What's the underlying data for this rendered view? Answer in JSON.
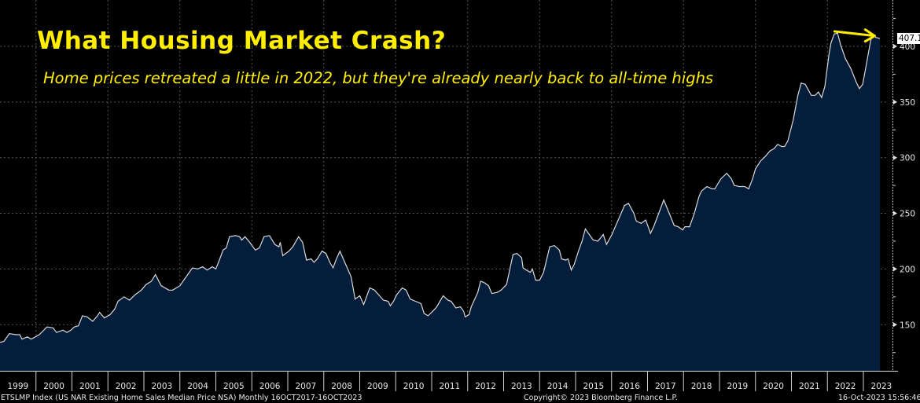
{
  "header": {
    "title": "What Housing Market Crash?",
    "subtitle": "Home prices retreated a little in 2022, but they're already nearly back to all-time highs"
  },
  "footer": {
    "series_desc": "ETSLMP Index (US NAR Existing Home Sales Median Price NSA)  Monthly 16OCT2017-16OCT2023",
    "copyright": "Copyright© 2023 Bloomberg Finance L.P.",
    "timestamp": "16-Oct-2023 15:56:46"
  },
  "colors": {
    "background": "#000000",
    "area_fill": "#041d3a",
    "line": "#d8d8d8",
    "title": "#ffee00",
    "arrow": "#ffee00",
    "grid": "#555555"
  },
  "chart_data": {
    "type": "area",
    "title": "What Housing Market Crash?",
    "subtitle": "Home prices retreated a little in 2022, but they're already nearly back to all-time highs",
    "xlabel": "",
    "ylabel": "",
    "y_axis_side": "right",
    "ylim": [
      108,
      430
    ],
    "xlim": [
      1999.0,
      2023.6
    ],
    "y_ticks": [
      150,
      200,
      250,
      300,
      350,
      400
    ],
    "x_tick_labels": [
      "1999",
      "2000",
      "2001",
      "2002",
      "2003",
      "2004",
      "2005",
      "2006",
      "2007",
      "2008",
      "2009",
      "2010",
      "2011",
      "2012",
      "2013",
      "2014",
      "2015",
      "2016",
      "2017",
      "2018",
      "2019",
      "2020",
      "2021",
      "2022",
      "2023"
    ],
    "grid": true,
    "last_value_label": "407.1",
    "annotation": {
      "type": "arrow",
      "from": [
        2022.2,
        412
      ],
      "to": [
        2023.4,
        408
      ],
      "meaning": "from prior peak to current level"
    },
    "series": [
      {
        "name": "US NAR Existing Home Sales Median Price NSA",
        "points": [
          [
            1999.0,
            134
          ],
          [
            1999.11,
            135
          ],
          [
            1999.26,
            142
          ],
          [
            1999.44,
            141
          ],
          [
            1999.55,
            141
          ],
          [
            1999.61,
            137
          ],
          [
            1999.76,
            139
          ],
          [
            1999.87,
            137
          ],
          [
            2000.09,
            141
          ],
          [
            2000.31,
            148
          ],
          [
            2000.48,
            147
          ],
          [
            2000.57,
            143
          ],
          [
            2000.75,
            145
          ],
          [
            2000.86,
            143
          ],
          [
            2000.97,
            145
          ],
          [
            2001.07,
            148
          ],
          [
            2001.18,
            149
          ],
          [
            2001.29,
            158
          ],
          [
            2001.42,
            157
          ],
          [
            2001.58,
            153
          ],
          [
            2001.71,
            158
          ],
          [
            2001.77,
            161
          ],
          [
            2001.9,
            156
          ],
          [
            2002.06,
            159
          ],
          [
            2002.19,
            164
          ],
          [
            2002.28,
            171
          ],
          [
            2002.45,
            175
          ],
          [
            2002.6,
            172
          ],
          [
            2002.76,
            177
          ],
          [
            2002.93,
            181
          ],
          [
            2003.06,
            186
          ],
          [
            2003.21,
            189
          ],
          [
            2003.32,
            195
          ],
          [
            2003.48,
            185
          ],
          [
            2003.69,
            181
          ],
          [
            2003.8,
            181
          ],
          [
            2004.0,
            185
          ],
          [
            2004.24,
            196
          ],
          [
            2004.35,
            201
          ],
          [
            2004.5,
            200
          ],
          [
            2004.63,
            202
          ],
          [
            2004.76,
            199
          ],
          [
            2004.9,
            202
          ],
          [
            2005.0,
            200
          ],
          [
            2005.11,
            209
          ],
          [
            2005.2,
            217
          ],
          [
            2005.29,
            219
          ],
          [
            2005.38,
            229
          ],
          [
            2005.55,
            230
          ],
          [
            2005.66,
            229
          ],
          [
            2005.72,
            226
          ],
          [
            2005.81,
            229
          ],
          [
            2005.94,
            224
          ],
          [
            2006.1,
            217
          ],
          [
            2006.21,
            219
          ],
          [
            2006.34,
            229
          ],
          [
            2006.49,
            230
          ],
          [
            2006.64,
            222
          ],
          [
            2006.75,
            220
          ],
          [
            2006.79,
            224
          ],
          [
            2006.86,
            212
          ],
          [
            2007.03,
            216
          ],
          [
            2007.14,
            220
          ],
          [
            2007.3,
            229
          ],
          [
            2007.41,
            224
          ],
          [
            2007.52,
            208
          ],
          [
            2007.65,
            209
          ],
          [
            2007.73,
            206
          ],
          [
            2007.82,
            209
          ],
          [
            2007.95,
            216
          ],
          [
            2008.06,
            214
          ],
          [
            2008.17,
            206
          ],
          [
            2008.26,
            201
          ],
          [
            2008.35,
            209
          ],
          [
            2008.45,
            216
          ],
          [
            2008.61,
            204
          ],
          [
            2008.76,
            193
          ],
          [
            2008.87,
            173
          ],
          [
            2009.0,
            176
          ],
          [
            2009.11,
            168
          ],
          [
            2009.28,
            183
          ],
          [
            2009.41,
            181
          ],
          [
            2009.52,
            177
          ],
          [
            2009.66,
            172
          ],
          [
            2009.79,
            171
          ],
          [
            2009.85,
            167
          ],
          [
            2009.94,
            171
          ],
          [
            2010.03,
            177
          ],
          [
            2010.18,
            183
          ],
          [
            2010.29,
            181
          ],
          [
            2010.4,
            173
          ],
          [
            2010.55,
            171
          ],
          [
            2010.7,
            169
          ],
          [
            2010.79,
            160
          ],
          [
            2010.9,
            158
          ],
          [
            2011.06,
            163
          ],
          [
            2011.14,
            166
          ],
          [
            2011.32,
            176
          ],
          [
            2011.45,
            172
          ],
          [
            2011.54,
            171
          ],
          [
            2011.67,
            165
          ],
          [
            2011.8,
            166
          ],
          [
            2011.89,
            162
          ],
          [
            2011.93,
            157
          ],
          [
            2012.04,
            159
          ],
          [
            2012.1,
            166
          ],
          [
            2012.28,
            179
          ],
          [
            2012.36,
            189
          ],
          [
            2012.45,
            188
          ],
          [
            2012.58,
            185
          ],
          [
            2012.67,
            178
          ],
          [
            2012.82,
            179
          ],
          [
            2012.93,
            181
          ],
          [
            2013.08,
            186
          ],
          [
            2013.26,
            213
          ],
          [
            2013.37,
            214
          ],
          [
            2013.5,
            210
          ],
          [
            2013.54,
            201
          ],
          [
            2013.63,
            199
          ],
          [
            2013.74,
            197
          ],
          [
            2013.8,
            200
          ],
          [
            2013.89,
            190
          ],
          [
            2014.0,
            190
          ],
          [
            2014.11,
            197
          ],
          [
            2014.28,
            220
          ],
          [
            2014.41,
            221
          ],
          [
            2014.55,
            217
          ],
          [
            2014.61,
            209
          ],
          [
            2014.72,
            208
          ],
          [
            2014.79,
            209
          ],
          [
            2014.88,
            199
          ],
          [
            2014.96,
            204
          ],
          [
            2015.09,
            217
          ],
          [
            2015.18,
            225
          ],
          [
            2015.27,
            236
          ],
          [
            2015.38,
            231
          ],
          [
            2015.49,
            226
          ],
          [
            2015.62,
            225
          ],
          [
            2015.77,
            231
          ],
          [
            2015.86,
            222
          ],
          [
            2016.01,
            231
          ],
          [
            2016.21,
            246
          ],
          [
            2016.36,
            257
          ],
          [
            2016.47,
            259
          ],
          [
            2016.62,
            250
          ],
          [
            2016.69,
            243
          ],
          [
            2016.82,
            241
          ],
          [
            2016.95,
            244
          ],
          [
            2017.04,
            236
          ],
          [
            2017.08,
            232
          ],
          [
            2017.17,
            238
          ],
          [
            2017.3,
            249
          ],
          [
            2017.45,
            262
          ],
          [
            2017.63,
            248
          ],
          [
            2017.74,
            239
          ],
          [
            2017.85,
            238
          ],
          [
            2017.98,
            235
          ],
          [
            2018.04,
            238
          ],
          [
            2018.17,
            238
          ],
          [
            2018.3,
            250
          ],
          [
            2018.43,
            265
          ],
          [
            2018.5,
            270
          ],
          [
            2018.65,
            274
          ],
          [
            2018.8,
            272
          ],
          [
            2018.87,
            272
          ],
          [
            2019.04,
            281
          ],
          [
            2019.2,
            286
          ],
          [
            2019.33,
            281
          ],
          [
            2019.41,
            275
          ],
          [
            2019.55,
            274
          ],
          [
            2019.7,
            274
          ],
          [
            2019.81,
            272
          ],
          [
            2019.92,
            281
          ],
          [
            2020.0,
            290
          ],
          [
            2020.14,
            297
          ],
          [
            2020.27,
            301
          ],
          [
            2020.4,
            306
          ],
          [
            2020.51,
            308
          ],
          [
            2020.62,
            312
          ],
          [
            2020.73,
            310
          ],
          [
            2020.81,
            310
          ],
          [
            2020.9,
            315
          ],
          [
            2021.05,
            334
          ],
          [
            2021.18,
            356
          ],
          [
            2021.27,
            367
          ],
          [
            2021.38,
            366
          ],
          [
            2021.45,
            362
          ],
          [
            2021.55,
            356
          ],
          [
            2021.66,
            356
          ],
          [
            2021.75,
            359
          ],
          [
            2021.84,
            354
          ],
          [
            2021.93,
            364
          ],
          [
            2022.04,
            392
          ],
          [
            2022.1,
            403
          ],
          [
            2022.19,
            411
          ],
          [
            2022.28,
            412
          ],
          [
            2022.37,
            401
          ],
          [
            2022.5,
            389
          ],
          [
            2022.65,
            380
          ],
          [
            2022.8,
            368
          ],
          [
            2022.89,
            362
          ],
          [
            2022.98,
            366
          ],
          [
            2023.09,
            385
          ],
          [
            2023.2,
            405
          ],
          [
            2023.26,
            411
          ],
          [
            2023.35,
            408
          ],
          [
            2023.46,
            407.1
          ]
        ]
      }
    ]
  }
}
